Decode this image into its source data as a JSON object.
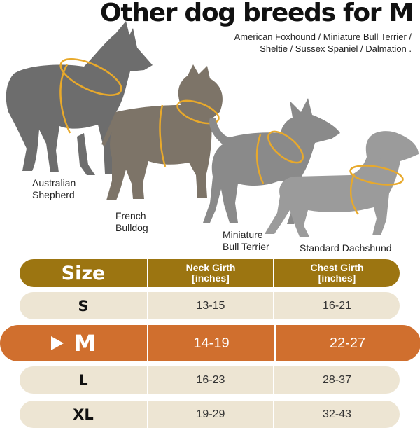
{
  "title": "Other dog breeds for M",
  "breeds_line1": "American Foxhound / Miniature Bull Terrier /",
  "breeds_line2": "Sheltie / Sussex Spaniel / Dalmation .",
  "dogs": [
    {
      "label_line1": "Australian",
      "label_line2": "Shepherd",
      "color": "#6d6d6d"
    },
    {
      "label_line1": "French",
      "label_line2": "Bulldog",
      "color": "#7d7468"
    },
    {
      "label_line1": "Miniature",
      "label_line2": "Bull Terrier",
      "color": "#8a8a8a"
    },
    {
      "label_line1": "Standard Dachshund",
      "label_line2": "",
      "color": "#9b9b9b"
    }
  ],
  "collar_color": "#e8a92b",
  "table": {
    "header": {
      "size": "Size",
      "neck_line1": "Neck Girth",
      "neck_line2": "[inches]",
      "chest_line1": "Chest Girth",
      "chest_line2": "[inches]"
    },
    "rows": [
      {
        "size": "S",
        "neck": "13-15",
        "chest": "16-21"
      },
      {
        "size": "M",
        "neck": "14-19",
        "chest": "22-27",
        "highlighted": true
      },
      {
        "size": "L",
        "neck": "16-23",
        "chest": "28-37"
      },
      {
        "size": "XL",
        "neck": "19-29",
        "chest": "32-43"
      }
    ]
  },
  "colors": {
    "header": "#9c7511",
    "row": "#ede5d3",
    "highlight": "#d06f2e"
  }
}
